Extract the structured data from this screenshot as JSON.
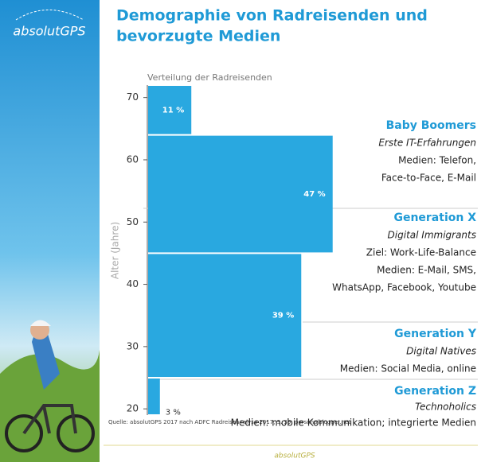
{
  "logo": "absolutGPS",
  "footer": "absolutGPS",
  "chart_data": {
    "type": "histogram",
    "title": [
      "Demographie von Radreisenden und",
      "bevorzugte Medien"
    ],
    "subtitle": "Verteilung der Radreisenden",
    "y_label": "Alter (Jahre)",
    "bins": [
      19,
      25,
      45,
      64,
      72
    ],
    "values": [
      3,
      39,
      47,
      11
    ],
    "value_labels": [
      "3 %",
      "39 %",
      "47 %",
      "11 %"
    ],
    "color": "#29a8e0",
    "ylim": [
      19,
      72
    ],
    "yticks": [
      20,
      30,
      40,
      50,
      60,
      70
    ],
    "annotations": [
      {
        "name": "Baby Boomers",
        "lines": [
          "Erste IT-Erfahrungen",
          "Medien: Telefon,",
          "Face-to-Face, E-Mail"
        ]
      },
      {
        "name": "Generation X",
        "lines": [
          "Digital Immigrants",
          "Ziel: Work-Life-Balance",
          "Medien: E-Mail, SMS,",
          "WhatsApp, Facebook, Youtube"
        ]
      },
      {
        "name": "Generation Y",
        "lines": [
          "Digital Natives",
          "Medien: Social Media, online"
        ]
      },
      {
        "name": "Generation Z",
        "lines": [
          "Technoholics",
          "Medien: mobile Kommunikation; integrierte Medien"
        ]
      }
    ],
    "source": "Quelle: absolutGPS 2017 nach ADFC Radreiseanalyse 2017, S. 39; personalblogger.net"
  }
}
